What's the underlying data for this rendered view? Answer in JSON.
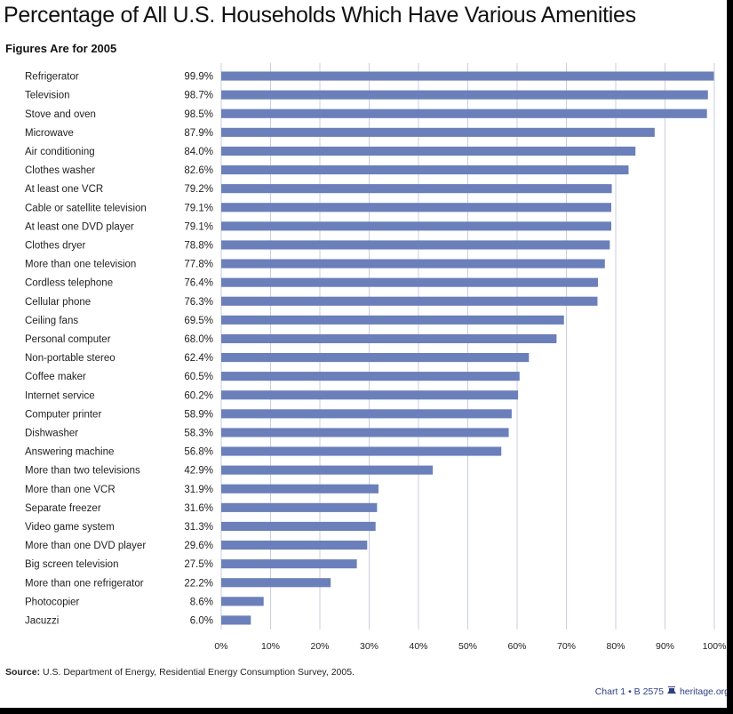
{
  "chart_data": {
    "type": "bar",
    "orientation": "horizontal",
    "title": "Percentage of All U.S. Households Which Have Various Amenities",
    "subtitle": "Figures Are for 2005",
    "categories": [
      "Refrigerator",
      "Television",
      "Stove and oven",
      "Microwave",
      "Air conditioning",
      "Clothes washer",
      "At least one VCR",
      "Cable or satellite television",
      "At least one DVD player",
      "Clothes dryer",
      "More than one television",
      "Cordless telephone",
      "Cellular phone",
      "Ceiling fans",
      "Personal computer",
      "Non-portable stereo",
      "Coffee maker",
      "Internet service",
      "Computer printer",
      "Dishwasher",
      "Answering machine",
      "More than two televisions",
      "More than one VCR",
      "Separate freezer",
      "Video game system",
      "More than one DVD player",
      "Big screen television",
      "More than one refrigerator",
      "Photocopier",
      "Jacuzzi"
    ],
    "values": [
      99.9,
      98.7,
      98.5,
      87.9,
      84.0,
      82.6,
      79.2,
      79.1,
      79.1,
      78.8,
      77.8,
      76.4,
      76.3,
      69.5,
      68.0,
      62.4,
      60.5,
      60.2,
      58.9,
      58.3,
      56.8,
      42.9,
      31.9,
      31.6,
      31.3,
      29.6,
      27.5,
      22.2,
      8.6,
      6.0
    ],
    "value_labels": [
      "99.9%",
      "98.7%",
      "98.5%",
      "87.9%",
      "84.0%",
      "82.6%",
      "79.2%",
      "79.1%",
      "79.1%",
      "78.8%",
      "77.8%",
      "76.4%",
      "76.3%",
      "69.5%",
      "68.0%",
      "62.4%",
      "60.5%",
      "60.2%",
      "58.9%",
      "58.3%",
      "56.8%",
      "42.9%",
      "31.9%",
      "31.6%",
      "31.3%",
      "29.6%",
      "27.5%",
      "22.2%",
      "8.6%",
      "6.0%"
    ],
    "xlim": [
      0,
      100
    ],
    "xticks": [
      0,
      10,
      20,
      30,
      40,
      50,
      60,
      70,
      80,
      90,
      100
    ],
    "xtick_labels": [
      "0%",
      "10%",
      "20%",
      "30%",
      "40%",
      "50%",
      "60%",
      "70%",
      "80%",
      "90%",
      "100%"
    ],
    "xlabel": "",
    "ylabel": "",
    "grid": true,
    "bar_color": "#6b7fba",
    "grid_color": "#c9cfe0"
  },
  "source": {
    "label": "Source:",
    "text": "U.S. Department of Energy, Residential Energy Consumption Survey, 2005."
  },
  "credit": {
    "chart_ref": "Chart 1 • B 2575",
    "site": "heritage.org"
  }
}
